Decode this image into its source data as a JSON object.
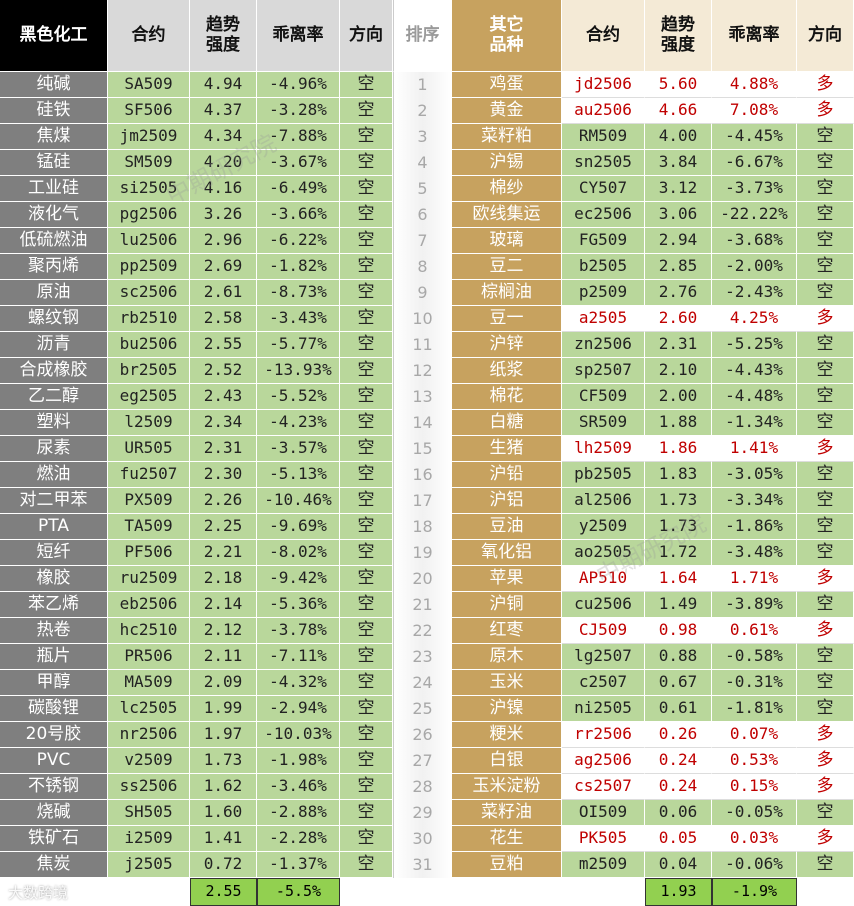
{
  "left": {
    "headers": [
      "黑色化工",
      "合约",
      "趋势\n强度",
      "乖离率",
      "方向"
    ],
    "rows": [
      [
        "纯碱",
        "SA509",
        "4.94",
        "-4.96%",
        "空"
      ],
      [
        "硅铁",
        "SF506",
        "4.37",
        "-3.28%",
        "空"
      ],
      [
        "焦煤",
        "jm2509",
        "4.34",
        "-7.88%",
        "空"
      ],
      [
        "锰硅",
        "SM509",
        "4.20",
        "-3.67%",
        "空"
      ],
      [
        "工业硅",
        "si2505",
        "4.16",
        "-6.49%",
        "空"
      ],
      [
        "液化气",
        "pg2506",
        "3.26",
        "-3.66%",
        "空"
      ],
      [
        "低硫燃油",
        "lu2506",
        "2.96",
        "-6.22%",
        "空"
      ],
      [
        "聚丙烯",
        "pp2509",
        "2.69",
        "-1.82%",
        "空"
      ],
      [
        "原油",
        "sc2506",
        "2.61",
        "-8.73%",
        "空"
      ],
      [
        "螺纹钢",
        "rb2510",
        "2.58",
        "-3.43%",
        "空"
      ],
      [
        "沥青",
        "bu2506",
        "2.55",
        "-5.77%",
        "空"
      ],
      [
        "合成橡胶",
        "br2505",
        "2.52",
        "-13.93%",
        "空"
      ],
      [
        "乙二醇",
        "eg2505",
        "2.43",
        "-5.52%",
        "空"
      ],
      [
        "塑料",
        "l2509",
        "2.34",
        "-4.23%",
        "空"
      ],
      [
        "尿素",
        "UR505",
        "2.31",
        "-3.57%",
        "空"
      ],
      [
        "燃油",
        "fu2507",
        "2.30",
        "-5.13%",
        "空"
      ],
      [
        "对二甲苯",
        "PX509",
        "2.26",
        "-10.46%",
        "空"
      ],
      [
        "PTA",
        "TA509",
        "2.25",
        "-9.69%",
        "空"
      ],
      [
        "短纤",
        "PF506",
        "2.21",
        "-8.02%",
        "空"
      ],
      [
        "橡胶",
        "ru2509",
        "2.18",
        "-9.42%",
        "空"
      ],
      [
        "苯乙烯",
        "eb2506",
        "2.14",
        "-5.36%",
        "空"
      ],
      [
        "热卷",
        "hc2510",
        "2.12",
        "-3.78%",
        "空"
      ],
      [
        "瓶片",
        "PR506",
        "2.11",
        "-7.11%",
        "空"
      ],
      [
        "甲醇",
        "MA509",
        "2.09",
        "-4.32%",
        "空"
      ],
      [
        "碳酸锂",
        "lc2505",
        "1.99",
        "-2.94%",
        "空"
      ],
      [
        "20号胶",
        "nr2506",
        "1.97",
        "-10.03%",
        "空"
      ],
      [
        "PVC",
        "v2509",
        "1.73",
        "-1.98%",
        "空"
      ],
      [
        "不锈钢",
        "ss2506",
        "1.62",
        "-3.46%",
        "空"
      ],
      [
        "烧碱",
        "SH505",
        "1.60",
        "-2.88%",
        "空"
      ],
      [
        "铁矿石",
        "i2509",
        "1.41",
        "-2.28%",
        "空"
      ],
      [
        "焦炭",
        "j2505",
        "0.72",
        "-1.37%",
        "空"
      ]
    ],
    "averages": [
      "2.55",
      "-5.5%"
    ]
  },
  "rank": {
    "header": "排序",
    "values": [
      "1",
      "2",
      "3",
      "4",
      "5",
      "6",
      "7",
      "8",
      "9",
      "10",
      "11",
      "12",
      "13",
      "14",
      "15",
      "16",
      "17",
      "18",
      "19",
      "20",
      "21",
      "22",
      "23",
      "24",
      "25",
      "26",
      "27",
      "28",
      "29",
      "30",
      "31"
    ]
  },
  "right": {
    "headers": [
      "其它\n品种",
      "合约",
      "趋势\n强度",
      "乖离率",
      "方向"
    ],
    "rows": [
      [
        "鸡蛋",
        "jd2506",
        "5.60",
        "4.88%",
        "多"
      ],
      [
        "黄金",
        "au2506",
        "4.66",
        "7.08%",
        "多"
      ],
      [
        "菜籽粕",
        "RM509",
        "4.00",
        "-4.45%",
        "空"
      ],
      [
        "沪锡",
        "sn2505",
        "3.84",
        "-6.67%",
        "空"
      ],
      [
        "棉纱",
        "CY507",
        "3.12",
        "-3.73%",
        "空"
      ],
      [
        "欧线集运",
        "ec2506",
        "3.06",
        "-22.22%",
        "空"
      ],
      [
        "玻璃",
        "FG509",
        "2.94",
        "-3.68%",
        "空"
      ],
      [
        "豆二",
        "b2505",
        "2.85",
        "-2.00%",
        "空"
      ],
      [
        "棕榈油",
        "p2509",
        "2.76",
        "-2.43%",
        "空"
      ],
      [
        "豆一",
        "a2505",
        "2.60",
        "4.25%",
        "多"
      ],
      [
        "沪锌",
        "zn2506",
        "2.31",
        "-5.25%",
        "空"
      ],
      [
        "纸浆",
        "sp2507",
        "2.10",
        "-4.43%",
        "空"
      ],
      [
        "棉花",
        "CF509",
        "2.00",
        "-4.48%",
        "空"
      ],
      [
        "白糖",
        "SR509",
        "1.88",
        "-1.34%",
        "空"
      ],
      [
        "生猪",
        "lh2509",
        "1.86",
        "1.41%",
        "多"
      ],
      [
        "沪铅",
        "pb2505",
        "1.83",
        "-3.05%",
        "空"
      ],
      [
        "沪铝",
        "al2506",
        "1.73",
        "-3.34%",
        "空"
      ],
      [
        "豆油",
        "y2509",
        "1.73",
        "-1.86%",
        "空"
      ],
      [
        "氧化铝",
        "ao2505",
        "1.72",
        "-3.48%",
        "空"
      ],
      [
        "苹果",
        "AP510",
        "1.64",
        "1.71%",
        "多"
      ],
      [
        "沪铜",
        "cu2506",
        "1.49",
        "-3.89%",
        "空"
      ],
      [
        "红枣",
        "CJ509",
        "0.98",
        "0.61%",
        "多"
      ],
      [
        "原木",
        "lg2507",
        "0.88",
        "-0.58%",
        "空"
      ],
      [
        "玉米",
        "c2507",
        "0.67",
        "-0.31%",
        "空"
      ],
      [
        "沪镍",
        "ni2505",
        "0.61",
        "-1.81%",
        "空"
      ],
      [
        "粳米",
        "rr2506",
        "0.26",
        "0.07%",
        "多"
      ],
      [
        "白银",
        "ag2506",
        "0.24",
        "0.53%",
        "多"
      ],
      [
        "玉米淀粉",
        "cs2507",
        "0.24",
        "0.15%",
        "多"
      ],
      [
        "菜籽油",
        "OI509",
        "0.06",
        "-0.05%",
        "空"
      ],
      [
        "花生",
        "PK505",
        "0.05",
        "0.03%",
        "多"
      ],
      [
        "豆粕",
        "m2509",
        "0.04",
        "-0.06%",
        "空"
      ]
    ],
    "averages": [
      "1.93",
      "-1.9%"
    ]
  },
  "watermarks": [
    "中期研究院",
    "中期研究院",
    "大数跨境"
  ]
}
